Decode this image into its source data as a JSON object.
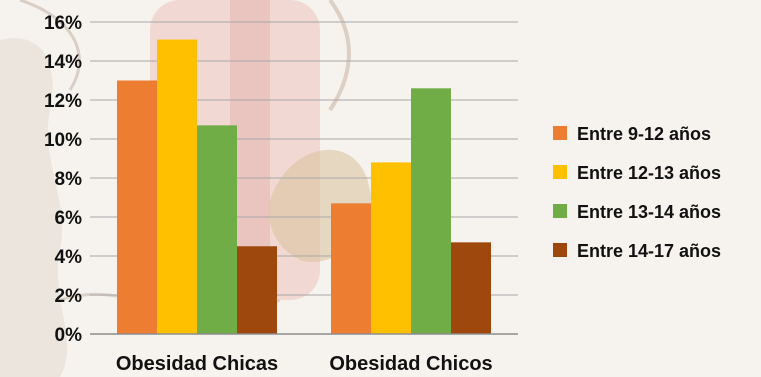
{
  "chart_data": {
    "type": "bar",
    "categories": [
      "Obesidad Chicas",
      "Obesidad Chicos"
    ],
    "series": [
      {
        "name": "Entre 9-12 años",
        "color": "#ED7D31",
        "values": [
          13.0,
          6.7
        ]
      },
      {
        "name": "Entre 12-13 años",
        "color": "#FFC000",
        "values": [
          15.1,
          8.8
        ]
      },
      {
        "name": "Entre 13-14 años",
        "color": "#70AD47",
        "values": [
          10.7,
          12.6
        ]
      },
      {
        "name": "Entre 14-17 años",
        "color": "#9E480E",
        "values": [
          4.5,
          4.7
        ]
      }
    ],
    "yticks": [
      "0%",
      "2%",
      "4%",
      "6%",
      "8%",
      "10%",
      "12%",
      "14%",
      "16%"
    ],
    "ylim": [
      0,
      16
    ],
    "ytick_step": 2,
    "grid": true,
    "legend_position": "right",
    "title": "",
    "xlabel": "",
    "ylabel": ""
  }
}
